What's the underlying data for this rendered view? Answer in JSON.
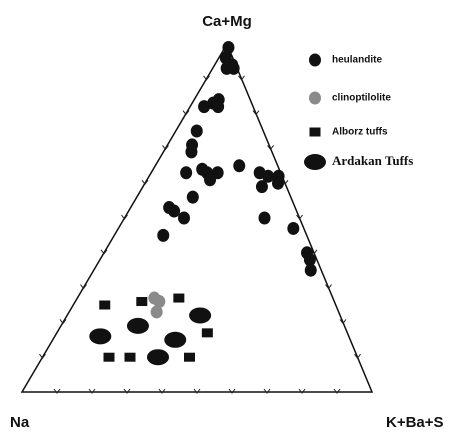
{
  "chart_data": {
    "type": "ternary",
    "apex_labels": {
      "top": "Ca+Mg",
      "left": "Na",
      "right": "K+Ba+S"
    },
    "ticks": [
      10,
      20,
      30,
      40,
      50,
      60,
      70,
      80,
      90
    ],
    "series": [
      {
        "name": "heulandite",
        "marker": "circle",
        "color": "#111111",
        "points": [
          [
            99,
            0,
            1
          ],
          [
            96,
            2,
            2
          ],
          [
            94,
            1,
            5
          ],
          [
            93,
            3,
            4
          ],
          [
            93,
            1,
            6
          ],
          [
            84,
            9,
            7
          ],
          [
            83,
            11,
            6
          ],
          [
            82,
            14,
            4
          ],
          [
            82,
            10,
            8
          ],
          [
            75,
            19,
            6
          ],
          [
            71,
            22,
            7
          ],
          [
            69,
            23,
            8
          ],
          [
            64,
            22,
            14
          ],
          [
            63,
            27,
            10
          ],
          [
            63,
            21,
            16
          ],
          [
            63,
            18,
            19
          ],
          [
            61,
            21,
            18
          ],
          [
            65,
            11,
            24
          ],
          [
            56,
            28,
            16
          ],
          [
            53,
            36,
            11
          ],
          [
            52,
            35,
            13
          ],
          [
            50,
            33,
            17
          ],
          [
            45,
            41,
            14
          ],
          [
            63,
            6,
            31
          ],
          [
            62,
            4,
            34
          ],
          [
            59,
            7,
            34
          ],
          [
            62,
            1,
            37
          ],
          [
            60,
            2,
            38
          ],
          [
            50,
            10,
            40
          ],
          [
            47,
            3,
            50
          ],
          [
            40,
            2,
            58
          ],
          [
            38,
            2,
            60
          ],
          [
            35,
            3,
            62
          ]
        ]
      },
      {
        "name": "clinoptilolite",
        "marker": "circle",
        "color": "#8a8a8a",
        "points": [
          [
            27,
            51,
            22
          ],
          [
            26,
            50,
            24
          ],
          [
            23,
            52,
            25
          ]
        ]
      },
      {
        "name": "Alborz tuffs",
        "marker": "square",
        "color": "#111111",
        "points": [
          [
            25,
            66,
            9
          ],
          [
            26,
            55,
            19
          ],
          [
            27,
            44,
            29
          ],
          [
            17,
            40,
            43
          ],
          [
            10,
            71,
            19
          ],
          [
            10,
            65,
            25
          ],
          [
            10,
            48,
            42
          ]
        ]
      },
      {
        "name": "Ardakan Tuffs",
        "marker": "ellipse",
        "color": "#111111",
        "points": [
          [
            22,
            40,
            38
          ],
          [
            19,
            59,
            22
          ],
          [
            15,
            50,
            35
          ],
          [
            16,
            71,
            13
          ],
          [
            10,
            57,
            33
          ]
        ]
      }
    ]
  }
}
